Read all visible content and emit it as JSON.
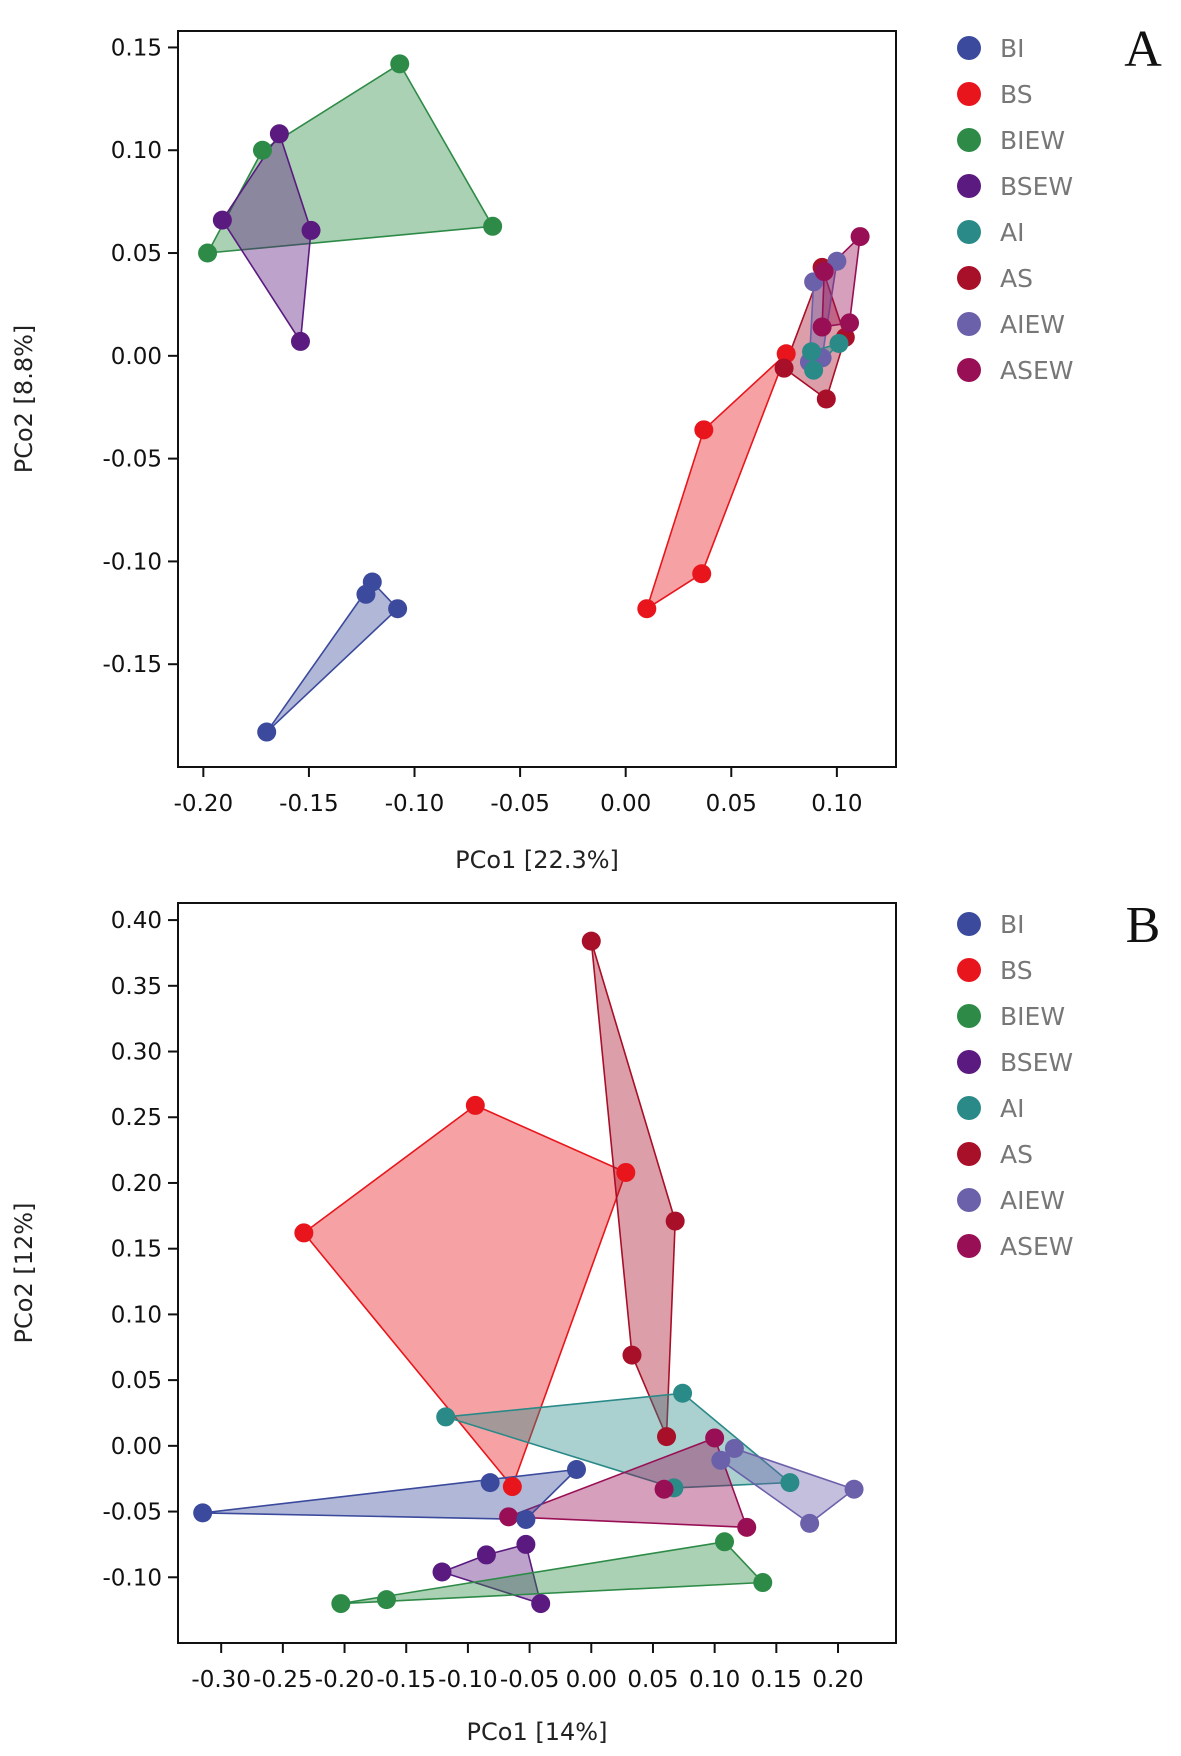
{
  "colors": {
    "BI": "#3b4a9c",
    "BS": "#e8161c",
    "BIEW": "#2e8b47",
    "BSEW": "#5a1a7f",
    "AI": "#2a8a88",
    "AS": "#a80f28",
    "AIEW": "#6b60aa",
    "ASEW": "#980f55"
  },
  "chart_data": [
    {
      "type": "scatter",
      "panel": "A",
      "xlabel": "PCo1 [22.3%]",
      "ylabel": "PCo2 [8.8%]",
      "xlim": [
        -0.212,
        0.128
      ],
      "ylim": [
        -0.2,
        0.158
      ],
      "xticks": [
        -0.2,
        -0.15,
        -0.1,
        -0.05,
        0.0,
        0.05,
        0.1
      ],
      "xtick_labels": [
        "-0.20",
        "-0.15",
        "-0.10",
        "-0.05",
        "0.00",
        "0.05",
        "0.10"
      ],
      "yticks": [
        0.15,
        0.1,
        0.05,
        0.0,
        -0.05,
        -0.1,
        -0.15
      ],
      "ytick_labels": [
        "0.15",
        "0.10",
        "0.05",
        "0.00",
        "-0.05",
        "-0.10",
        "-0.15"
      ],
      "legend": [
        "BI",
        "BS",
        "BIEW",
        "BSEW",
        "AI",
        "AS",
        "AIEW",
        "ASEW"
      ],
      "legend_position": "right",
      "series": [
        {
          "name": "BI",
          "points": [
            [
              -0.17,
              -0.183
            ],
            [
              -0.123,
              -0.116
            ],
            [
              -0.12,
              -0.11
            ],
            [
              -0.108,
              -0.123
            ]
          ]
        },
        {
          "name": "BIEW",
          "points": [
            [
              -0.107,
              0.142
            ],
            [
              -0.172,
              0.1
            ],
            [
              -0.198,
              0.05
            ],
            [
              -0.063,
              0.063
            ]
          ]
        },
        {
          "name": "BSEW",
          "points": [
            [
              -0.164,
              0.108
            ],
            [
              -0.191,
              0.066
            ],
            [
              -0.149,
              0.061
            ],
            [
              -0.154,
              0.007
            ]
          ]
        },
        {
          "name": "BS",
          "points": [
            [
              0.01,
              -0.123
            ],
            [
              0.036,
              -0.106
            ],
            [
              0.037,
              -0.036
            ],
            [
              0.076,
              0.001
            ]
          ]
        },
        {
          "name": "AS",
          "points": [
            [
              0.075,
              -0.006
            ],
            [
              0.095,
              -0.021
            ],
            [
              0.093,
              0.043
            ],
            [
              0.104,
              0.009
            ]
          ]
        },
        {
          "name": "AIEW",
          "points": [
            [
              0.089,
              0.036
            ],
            [
              0.1,
              0.046
            ],
            [
              0.093,
              -0.001
            ],
            [
              0.087,
              -0.003
            ]
          ]
        },
        {
          "name": "ASEW",
          "points": [
            [
              0.111,
              0.058
            ],
            [
              0.093,
              0.014
            ],
            [
              0.106,
              0.016
            ],
            [
              0.094,
              0.041
            ]
          ]
        },
        {
          "name": "AI",
          "points": [
            [
              0.088,
              0.002
            ],
            [
              0.089,
              -0.007
            ],
            [
              0.101,
              0.006
            ]
          ]
        }
      ]
    },
    {
      "type": "scatter",
      "panel": "B",
      "xlabel": "PCo1 [14%]",
      "ylabel": "PCo2 [12%]",
      "xlim": [
        -0.335,
        0.247
      ],
      "ylim": [
        -0.15,
        0.413
      ],
      "xticks": [
        -0.3,
        -0.25,
        -0.2,
        -0.15,
        -0.1,
        -0.05,
        0.0,
        0.05,
        0.1,
        0.15,
        0.2
      ],
      "xtick_labels": [
        "-0.30",
        "-0.25",
        "-0.20",
        "-0.15",
        "-0.10",
        "-0.05",
        "0.00",
        "0.05",
        "0.10",
        "0.15",
        "0.20"
      ],
      "yticks": [
        0.4,
        0.35,
        0.3,
        0.25,
        0.2,
        0.15,
        0.1,
        0.05,
        0.0,
        -0.05,
        -0.1
      ],
      "ytick_labels": [
        "0.40",
        "0.35",
        "0.30",
        "0.25",
        "0.20",
        "0.15",
        "0.10",
        "0.05",
        "0.00",
        "-0.05",
        "-0.10"
      ],
      "legend": [
        "BI",
        "BS",
        "BIEW",
        "BSEW",
        "AI",
        "AS",
        "AIEW",
        "ASEW"
      ],
      "legend_position": "right",
      "series": [
        {
          "name": "BS",
          "points": [
            [
              -0.094,
              0.259
            ],
            [
              0.028,
              0.208
            ],
            [
              -0.233,
              0.162
            ],
            [
              -0.064,
              -0.031
            ]
          ]
        },
        {
          "name": "AS",
          "points": [
            [
              0.0,
              0.384
            ],
            [
              0.068,
              0.171
            ],
            [
              0.033,
              0.069
            ],
            [
              0.061,
              0.007
            ]
          ]
        },
        {
          "name": "AI",
          "points": [
            [
              -0.118,
              0.022
            ],
            [
              0.074,
              0.04
            ],
            [
              0.161,
              -0.028
            ],
            [
              0.067,
              -0.032
            ]
          ]
        },
        {
          "name": "AIEW",
          "points": [
            [
              0.116,
              -0.002
            ],
            [
              0.105,
              -0.011
            ],
            [
              0.213,
              -0.033
            ],
            [
              0.177,
              -0.059
            ]
          ]
        },
        {
          "name": "ASEW",
          "points": [
            [
              0.1,
              0.006
            ],
            [
              0.059,
              -0.033
            ],
            [
              0.126,
              -0.062
            ],
            [
              -0.067,
              -0.054
            ]
          ]
        },
        {
          "name": "BI",
          "points": [
            [
              -0.315,
              -0.051
            ],
            [
              -0.082,
              -0.028
            ],
            [
              -0.012,
              -0.018
            ],
            [
              -0.053,
              -0.056
            ]
          ]
        },
        {
          "name": "BSEW",
          "points": [
            [
              -0.121,
              -0.096
            ],
            [
              -0.085,
              -0.083
            ],
            [
              -0.053,
              -0.075
            ],
            [
              -0.041,
              -0.12
            ]
          ]
        },
        {
          "name": "BIEW",
          "points": [
            [
              -0.203,
              -0.12
            ],
            [
              -0.166,
              -0.117
            ],
            [
              0.108,
              -0.073
            ],
            [
              0.139,
              -0.104
            ]
          ]
        }
      ]
    }
  ]
}
